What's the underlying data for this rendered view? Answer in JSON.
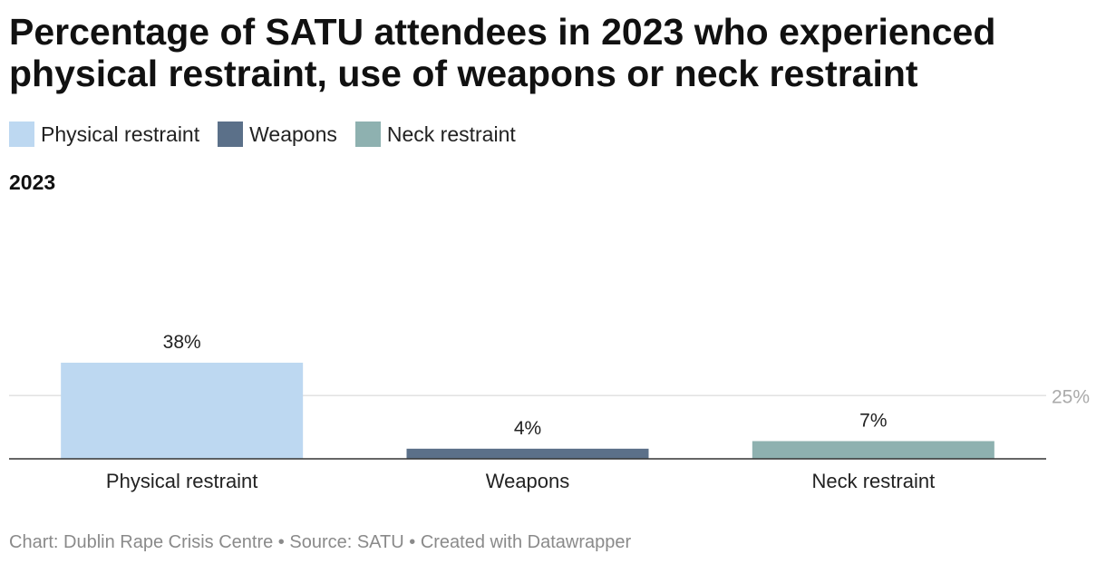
{
  "title": "Percentage of SATU attendees in 2023 who experienced physical restraint, use of weapons or neck restraint",
  "legend": [
    {
      "label": "Physical restraint",
      "color": "#bdd8f1"
    },
    {
      "label": "Weapons",
      "color": "#5b7089"
    },
    {
      "label": "Neck restraint",
      "color": "#8eb1b0"
    }
  ],
  "subtitle": "2023",
  "chart_data": {
    "type": "bar",
    "title": "Percentage of SATU attendees in 2023 who experienced physical restraint, use of weapons or neck restraint",
    "categories": [
      "Physical restraint",
      "Weapons",
      "Neck restraint"
    ],
    "values": [
      38,
      4,
      7
    ],
    "value_labels": [
      "38%",
      "4%",
      "7%"
    ],
    "colors": [
      "#bdd8f1",
      "#5b7089",
      "#8eb1b0"
    ],
    "ylim": [
      0,
      38
    ],
    "gridlines": [
      25
    ],
    "gridline_labels": [
      "25%"
    ],
    "xlabel": "",
    "ylabel": ""
  },
  "footer": {
    "credit": "Chart: Dublin Rape Crisis Centre",
    "source": "Source: SATU",
    "tool": "Created with Datawrapper",
    "separator": " • "
  }
}
